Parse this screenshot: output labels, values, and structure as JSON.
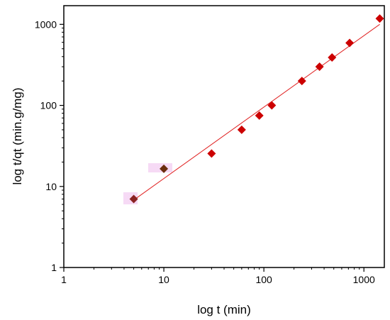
{
  "chart_data": {
    "type": "scatter",
    "xscale": "log",
    "yscale": "log",
    "xlim": [
      1,
      1600
    ],
    "ylim": [
      1,
      1700
    ],
    "xlabel": "log t (min)",
    "ylabel": "log t/qt (min.g/mg)",
    "xticks": [
      {
        "value": 1,
        "label": "1"
      },
      {
        "value": 10,
        "label": "10"
      },
      {
        "value": 100,
        "label": "100"
      },
      {
        "value": 1000,
        "label": "1000"
      }
    ],
    "yticks": [
      {
        "value": 1,
        "label": "1"
      },
      {
        "value": 10,
        "label": "10"
      },
      {
        "value": 100,
        "label": "100"
      },
      {
        "value": 1000,
        "label": "1000"
      }
    ],
    "grid": false,
    "legend": "none",
    "series": [
      {
        "marker": "diamond",
        "x": [
          5,
          10,
          30,
          60,
          90,
          120,
          240,
          360,
          480,
          720,
          1440
        ],
        "y": [
          7,
          16.5,
          25.5,
          50,
          75,
          100,
          200,
          300,
          390,
          590,
          1180
        ],
        "colors": [
          "#8b2323",
          "#6b2e0e",
          "#cc0000",
          "#cc0000",
          "#cc0000",
          "#cc0000",
          "#cc0000",
          "#cc0000",
          "#cc0000",
          "#cc0000",
          "#cc0000"
        ]
      }
    ],
    "fit_line": {
      "x": [
        5,
        1440
      ],
      "y": [
        6.8,
        1000
      ],
      "color": "#e02020"
    },
    "colors": {
      "marker": "#cc0000",
      "axis": "#000000"
    }
  }
}
